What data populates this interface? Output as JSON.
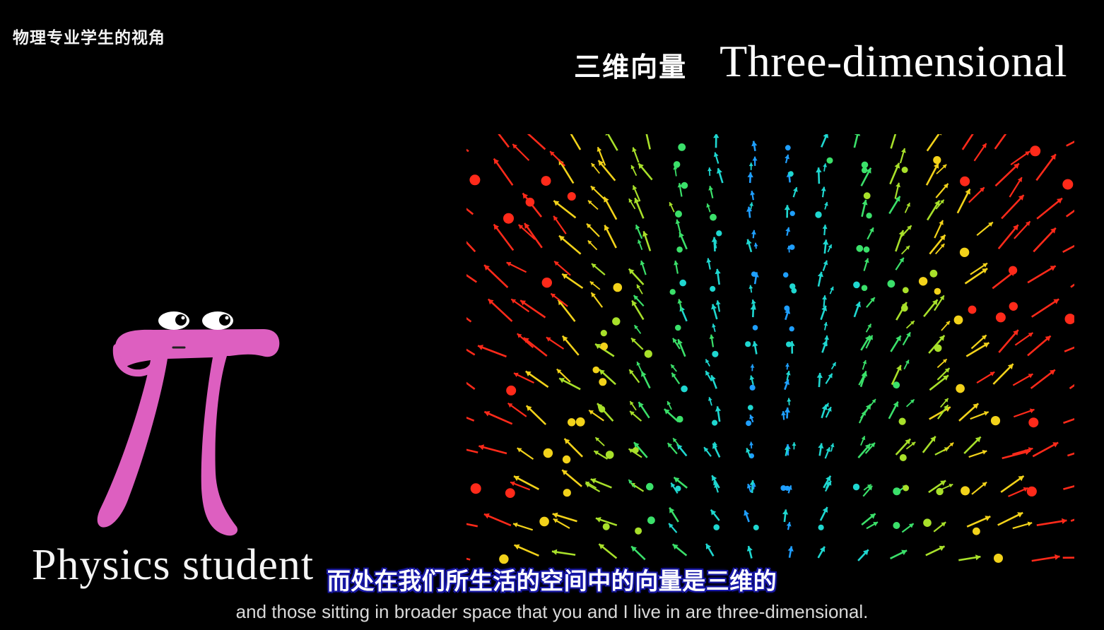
{
  "watermark": "物理专业学生的视角",
  "heading": {
    "chinese": "三维向量",
    "english": "Three-dimensional"
  },
  "character": {
    "label": "Physics student",
    "color": "#dd5fc0"
  },
  "subtitles": {
    "chinese": "而处在我们所生活的空间中的向量是三维的",
    "english": "and those sitting in broader space that you and I live in are three-dimensional."
  },
  "vector_field": {
    "colormap": [
      "#1f9fff",
      "#1fd7d0",
      "#3be06a",
      "#a8e02a",
      "#f2d21a",
      "#ff2a1a"
    ]
  },
  "icons": {
    "character": "pi-creature-icon",
    "field": "vector-field-icon"
  }
}
